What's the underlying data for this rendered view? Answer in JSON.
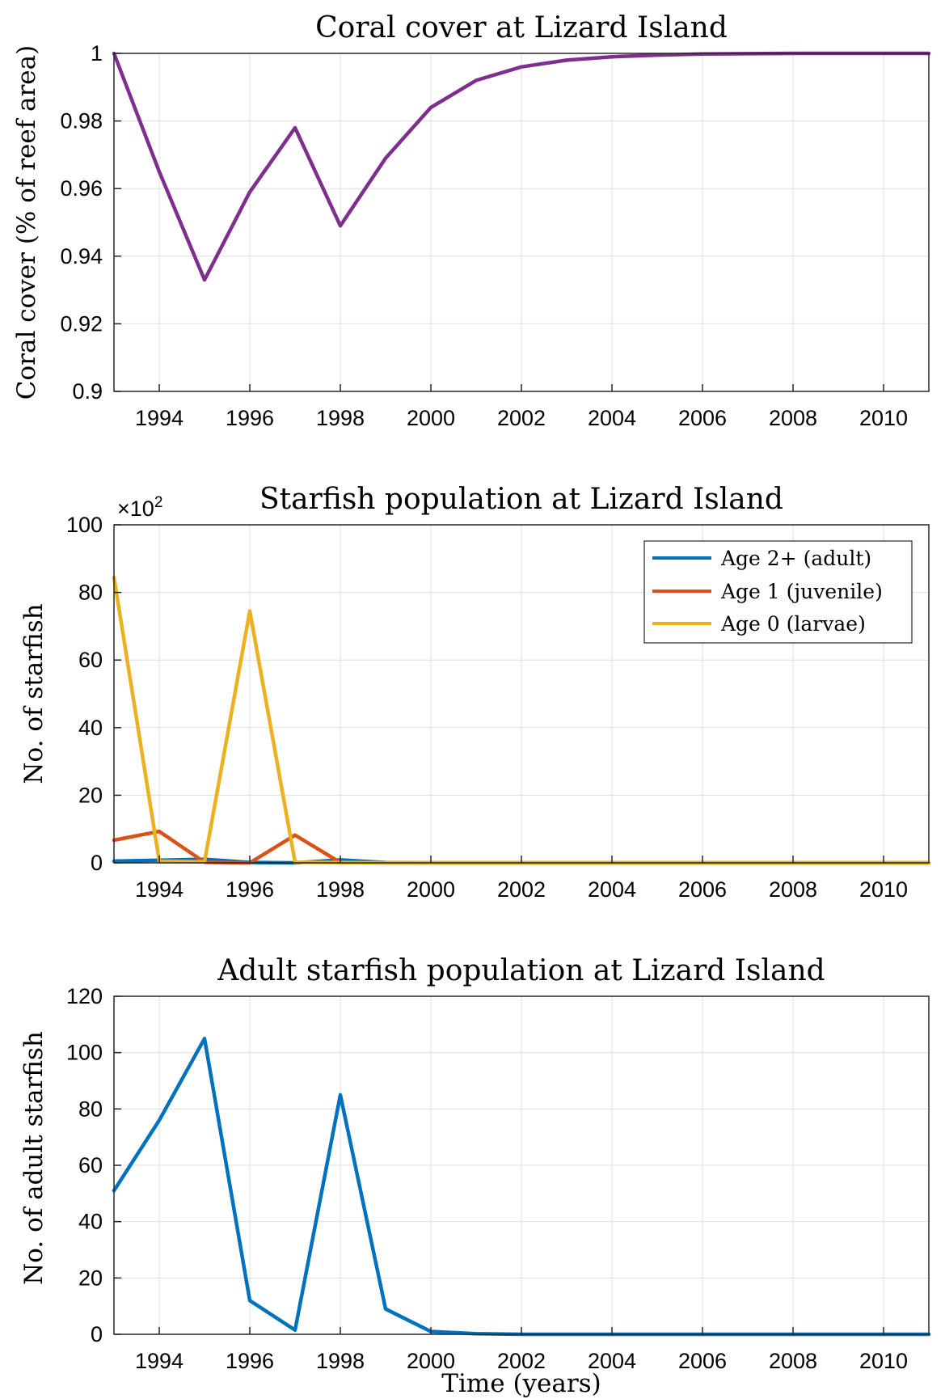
{
  "chart_data": [
    {
      "type": "line",
      "title": "Coral cover at Lizard Island",
      "xlabel": "",
      "ylabel": "Coral cover (% of reef area)",
      "xlim": [
        1993,
        2011
      ],
      "ylim": [
        0.9,
        1
      ],
      "xticks": [
        1994,
        1996,
        1998,
        2000,
        2002,
        2004,
        2006,
        2008,
        2010
      ],
      "xtick_labels": [
        "1994",
        "1996",
        "1998",
        "2000",
        "2002",
        "2004",
        "2006",
        "2008",
        "2010"
      ],
      "yticks": [
        0.9,
        0.92,
        0.94,
        0.96,
        0.98,
        1
      ],
      "ytick_labels": [
        "0.9",
        "0.92",
        "0.94",
        "0.96",
        "0.98",
        "1"
      ],
      "grid": true,
      "x": [
        1993,
        1994,
        1995,
        1996,
        1997,
        1998,
        1999,
        2000,
        2001,
        2002,
        2003,
        2004,
        2005,
        2006,
        2007,
        2008,
        2009,
        2010,
        2011
      ],
      "series": [
        {
          "color": "#7E2F8E",
          "values": [
            1.0,
            0.965,
            0.933,
            0.959,
            0.978,
            0.949,
            0.969,
            0.984,
            0.992,
            0.996,
            0.998,
            0.999,
            0.9995,
            0.9998,
            0.9999,
            1.0,
            1.0,
            1.0,
            1.0
          ]
        }
      ]
    },
    {
      "type": "line",
      "title": "Starfish population at Lizard Island",
      "xlabel": "",
      "ylabel": "No. of starfish",
      "exponent_label": "×10",
      "exponent_power": "2",
      "xlim": [
        1993,
        2011
      ],
      "ylim": [
        0,
        100
      ],
      "xticks": [
        1994,
        1996,
        1998,
        2000,
        2002,
        2004,
        2006,
        2008,
        2010
      ],
      "xtick_labels": [
        "1994",
        "1996",
        "1998",
        "2000",
        "2002",
        "2004",
        "2006",
        "2008",
        "2010"
      ],
      "yticks": [
        0,
        20,
        40,
        60,
        80,
        100
      ],
      "ytick_labels": [
        "0",
        "20",
        "40",
        "60",
        "80",
        "100"
      ],
      "grid": true,
      "legend_position": "top-right",
      "x": [
        1993,
        1994,
        1995,
        1996,
        1997,
        1998,
        1999,
        2000,
        2001,
        2002,
        2003,
        2004,
        2005,
        2006,
        2007,
        2008,
        2009,
        2010,
        2011
      ],
      "series": [
        {
          "name": "Age 2+ (adult)",
          "color": "#0072BD",
          "values": [
            0.5,
            0.8,
            1.05,
            0.12,
            0.01,
            0.85,
            0.09,
            0.01,
            0,
            0,
            0,
            0,
            0,
            0,
            0,
            0,
            0,
            0,
            0
          ]
        },
        {
          "name": "Age 1 (juvenile)",
          "color": "#D95319",
          "values": [
            6.7,
            9.3,
            0.2,
            0.0,
            8.2,
            0.1,
            0.0,
            0.0,
            0,
            0,
            0,
            0,
            0,
            0,
            0,
            0,
            0,
            0,
            0
          ]
        },
        {
          "name": "Age 0 (larvae)",
          "color": "#EDB120",
          "values": [
            84.5,
            0.5,
            0.3,
            74.5,
            0.2,
            0.1,
            0.0,
            0.0,
            0,
            0,
            0,
            0,
            0,
            0,
            0,
            0,
            0,
            0,
            0
          ]
        }
      ]
    },
    {
      "type": "line",
      "title": "Adult starfish population at Lizard Island",
      "xlabel": "Time (years)",
      "ylabel": "No. of adult starfish",
      "xlim": [
        1993,
        2011
      ],
      "ylim": [
        0,
        120
      ],
      "xticks": [
        1994,
        1996,
        1998,
        2000,
        2002,
        2004,
        2006,
        2008,
        2010
      ],
      "xtick_labels": [
        "1994",
        "1996",
        "1998",
        "2000",
        "2002",
        "2004",
        "2006",
        "2008",
        "2010"
      ],
      "yticks": [
        0,
        20,
        40,
        60,
        80,
        100,
        120
      ],
      "ytick_labels": [
        "0",
        "20",
        "40",
        "60",
        "80",
        "100",
        "120"
      ],
      "grid": true,
      "x": [
        1993,
        1994,
        1995,
        1996,
        1997,
        1998,
        1999,
        2000,
        2001,
        2002,
        2003,
        2004,
        2005,
        2006,
        2007,
        2008,
        2009,
        2010,
        2011
      ],
      "series": [
        {
          "color": "#0072BD",
          "values": [
            51,
            76,
            105,
            12,
            1.5,
            85,
            9,
            1,
            0.2,
            0,
            0,
            0,
            0,
            0,
            0,
            0,
            0,
            0,
            0
          ]
        }
      ]
    }
  ]
}
